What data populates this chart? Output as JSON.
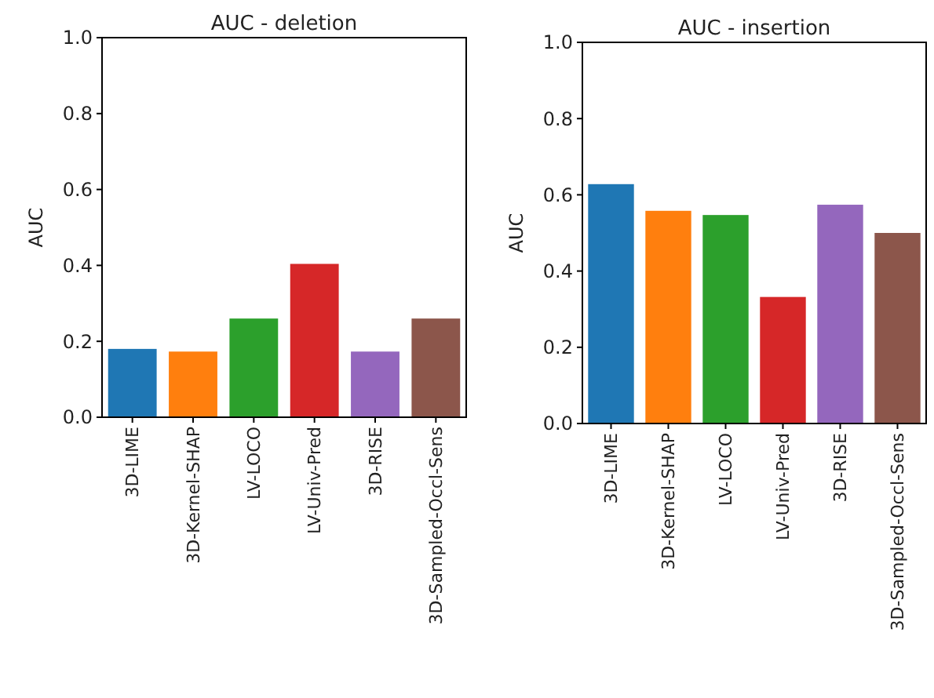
{
  "chart_data": [
    {
      "type": "bar",
      "title": "AUC - deletion",
      "ylabel": "AUC",
      "categories": [
        "3D-LIME",
        "3D-Kernel-SHAP",
        "LV-LOCO",
        "LV-Univ-Pred",
        "3D-RISE",
        "3D-Sampled-Occl-Sens"
      ],
      "values": [
        0.18,
        0.173,
        0.26,
        0.404,
        0.173,
        0.26
      ],
      "colors": [
        "#1f77b4",
        "#ff7f0e",
        "#2ca02c",
        "#d62728",
        "#9467bd",
        "#8c564b"
      ],
      "ylim": [
        0,
        1
      ],
      "yticks": [
        {
          "value": 0,
          "label": "0.0"
        },
        {
          "value": 0.2,
          "label": "0.2"
        },
        {
          "value": 0.4,
          "label": "0.4"
        },
        {
          "value": 0.6,
          "label": "0.6"
        },
        {
          "value": 0.8,
          "label": "0.8"
        },
        {
          "value": 1,
          "label": "1.0"
        }
      ],
      "grid": false
    },
    {
      "type": "bar",
      "title": "AUC - insertion",
      "ylabel": "AUC",
      "categories": [
        "3D-LIME",
        "3D-Kernel-SHAP",
        "LV-LOCO",
        "LV-Univ-Pred",
        "3D-RISE",
        "3D-Sampled-Occl-Sens"
      ],
      "values": [
        0.628,
        0.558,
        0.547,
        0.332,
        0.574,
        0.5
      ],
      "colors": [
        "#1f77b4",
        "#ff7f0e",
        "#2ca02c",
        "#d62728",
        "#9467bd",
        "#8c564b"
      ],
      "ylim": [
        0,
        1
      ],
      "yticks": [
        {
          "value": 0,
          "label": "0.0"
        },
        {
          "value": 0.2,
          "label": "0.2"
        },
        {
          "value": 0.4,
          "label": "0.4"
        },
        {
          "value": 0.6,
          "label": "0.6"
        },
        {
          "value": 0.8,
          "label": "0.8"
        },
        {
          "value": 1,
          "label": "1.0"
        }
      ],
      "grid": false
    }
  ]
}
